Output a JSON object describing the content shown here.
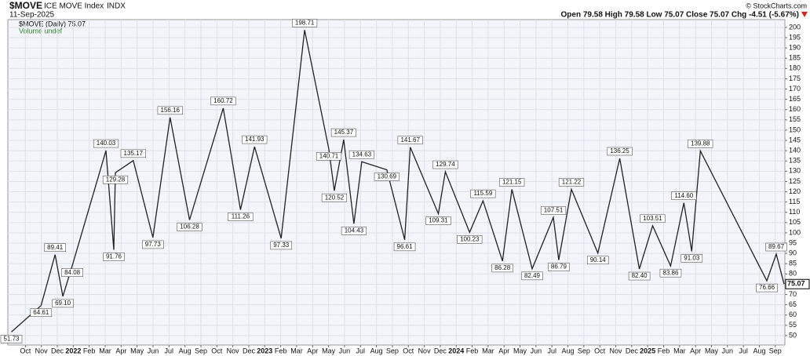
{
  "chart_data": {
    "type": "line",
    "title": "$MOVE",
    "subtitle": "ICE MOVE Index",
    "exchange": "INDX",
    "date": "11-Sep-2025",
    "quote": "Open 79.58  High 79.58  Low 75.07  Close 75.07  Chg -4.51 (-5.67%)",
    "watermark": "© StockCharts.com",
    "legend_label": "$MOVE (Daily) 75.07",
    "volume_label": "Volume undef",
    "grid": true,
    "xlim": [
      -1.1,
      47.6
    ],
    "ylim": [
      45.4,
      203.8
    ],
    "yticks": [
      50,
      55,
      60,
      65,
      70,
      75,
      80,
      85,
      90,
      95,
      100,
      105,
      110,
      115,
      120,
      125,
      130,
      135,
      140,
      145,
      150,
      155,
      160,
      165,
      170,
      175,
      180,
      185,
      190,
      195,
      200
    ],
    "xticks": [
      {
        "value": 0,
        "label": "Oct"
      },
      {
        "value": 1,
        "label": "Nov"
      },
      {
        "value": 2,
        "label": "Dec"
      },
      {
        "value": 3,
        "label": "2022"
      },
      {
        "value": 4,
        "label": "Feb"
      },
      {
        "value": 5,
        "label": "Mar"
      },
      {
        "value": 6,
        "label": "Apr"
      },
      {
        "value": 7,
        "label": "May"
      },
      {
        "value": 8,
        "label": "Jun"
      },
      {
        "value": 9,
        "label": "Jul"
      },
      {
        "value": 10,
        "label": "Aug"
      },
      {
        "value": 11,
        "label": "Sep"
      },
      {
        "value": 12,
        "label": "Oct"
      },
      {
        "value": 13,
        "label": "Nov"
      },
      {
        "value": 14,
        "label": "Dec"
      },
      {
        "value": 15,
        "label": "2023"
      },
      {
        "value": 16,
        "label": "Feb"
      },
      {
        "value": 17,
        "label": "Mar"
      },
      {
        "value": 18,
        "label": "Apr"
      },
      {
        "value": 19,
        "label": "May"
      },
      {
        "value": 20,
        "label": "Jun"
      },
      {
        "value": 21,
        "label": "Jul"
      },
      {
        "value": 22,
        "label": "Aug"
      },
      {
        "value": 23,
        "label": "Sep"
      },
      {
        "value": 24,
        "label": "Oct"
      },
      {
        "value": 25,
        "label": "Nov"
      },
      {
        "value": 26,
        "label": "Dec"
      },
      {
        "value": 27,
        "label": "2024"
      },
      {
        "value": 28,
        "label": "Feb"
      },
      {
        "value": 29,
        "label": "Mar"
      },
      {
        "value": 30,
        "label": "Apr"
      },
      {
        "value": 31,
        "label": "May"
      },
      {
        "value": 32,
        "label": "Jun"
      },
      {
        "value": 33,
        "label": "Jul"
      },
      {
        "value": 34,
        "label": "Aug"
      },
      {
        "value": 35,
        "label": "Sep"
      },
      {
        "value": 36,
        "label": "Oct"
      },
      {
        "value": 37,
        "label": "Nov"
      },
      {
        "value": 38,
        "label": "Dec"
      },
      {
        "value": 39,
        "label": "2025"
      },
      {
        "value": 40,
        "label": "Feb"
      },
      {
        "value": 41,
        "label": "Mar"
      },
      {
        "value": 42,
        "label": "Apr"
      },
      {
        "value": 43,
        "label": "May"
      },
      {
        "value": 44,
        "label": "Jun"
      },
      {
        "value": 45,
        "label": "Jul"
      },
      {
        "value": 46,
        "label": "Aug"
      },
      {
        "value": 47,
        "label": "Sep"
      }
    ],
    "series": [
      {
        "name": "$MOVE",
        "color": "#222222",
        "x": [
          -0.88,
          0.98,
          1.86,
          2.35,
          2.94,
          5.05,
          5.54,
          5.64,
          6.76,
          7.99,
          9.07,
          10.29,
          12.4,
          13.48,
          14.36,
          16.03,
          17.5,
          19.02,
          19.36,
          19.95,
          20.59,
          21.08,
          22.65,
          23.77,
          24.12,
          25.88,
          26.32,
          27.84,
          28.68,
          29.9,
          30.49,
          31.76,
          33.09,
          33.43,
          34.22,
          35.88,
          37.25,
          38.48,
          39.31,
          40.44,
          41.27,
          41.76,
          42.3,
          46.47,
          47.06,
          47.55
        ],
        "values": [
          51.73,
          64.61,
          89.41,
          69.1,
          84.08,
          140.03,
          91.76,
          129.28,
          135.17,
          97.73,
          156.16,
          106.28,
          160.72,
          111.26,
          141.93,
          97.33,
          198.71,
          140.71,
          120.52,
          145.37,
          104.43,
          134.63,
          130.69,
          96.61,
          141.67,
          109.31,
          129.74,
          100.23,
          115.59,
          86.28,
          121.15,
          82.49,
          107.51,
          86.79,
          121.22,
          90.14,
          136.25,
          82.4,
          103.51,
          83.86,
          114.6,
          91.03,
          139.88,
          76.66,
          89.67,
          75.07
        ],
        "value_labels": [
          "51.73",
          "64.61",
          "89.41",
          "69.10",
          "84.08",
          "140.03",
          "91.76",
          "129.28",
          "135.17",
          "97.73",
          "156.16",
          "106.28",
          "160.72",
          "111.26",
          "141.93",
          "97.33",
          "198.71",
          "140.71",
          "120.52",
          "145.37",
          "104.43",
          "134.63",
          "130.69",
          "96.61",
          "141.67",
          "109.31",
          "129.74",
          "100.23",
          "115.59",
          "86.28",
          "121.15",
          "82.49",
          "107.51",
          "86.79",
          "121.22",
          "90.14",
          "136.25",
          "82.40",
          "103.51",
          "83.86",
          "114.60",
          "91.03",
          "139.88",
          "76.66",
          "89.67",
          "75.07"
        ]
      }
    ]
  }
}
